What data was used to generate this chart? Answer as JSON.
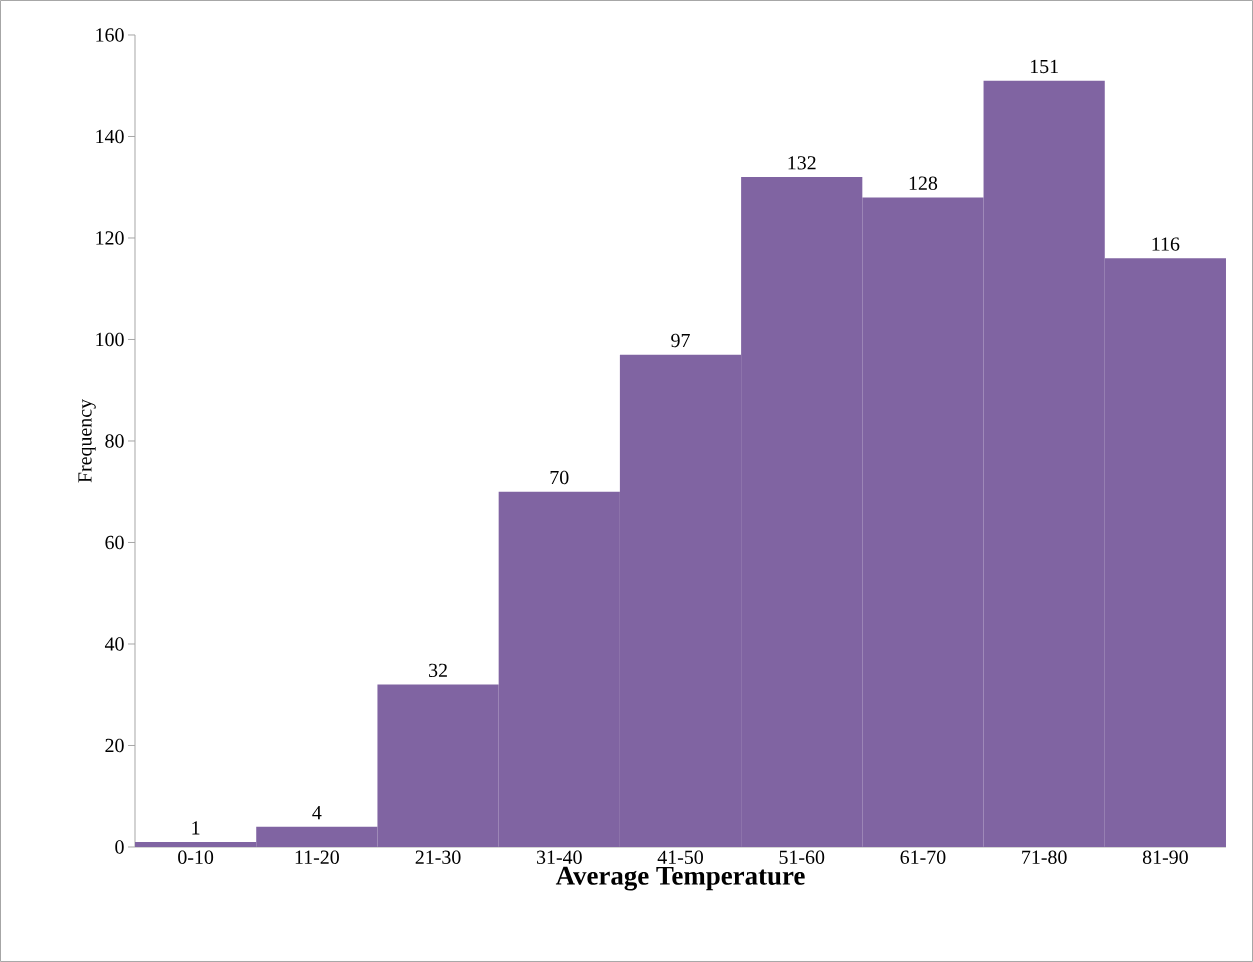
{
  "chart_data": {
    "type": "bar",
    "xlabel": "Average Temperature",
    "ylabel": "Frequency",
    "categories": [
      "0-10",
      "11-20",
      "21-30",
      "31-40",
      "41-50",
      "51-60",
      "61-70",
      "71-80",
      "81-90"
    ],
    "values": [
      1,
      4,
      32,
      70,
      97,
      132,
      128,
      151,
      116
    ],
    "color": "#8064a2",
    "ylim": [
      0,
      160
    ],
    "yticks": [
      0,
      20,
      40,
      60,
      80,
      100,
      120,
      140,
      160
    ],
    "data_labels": true
  }
}
